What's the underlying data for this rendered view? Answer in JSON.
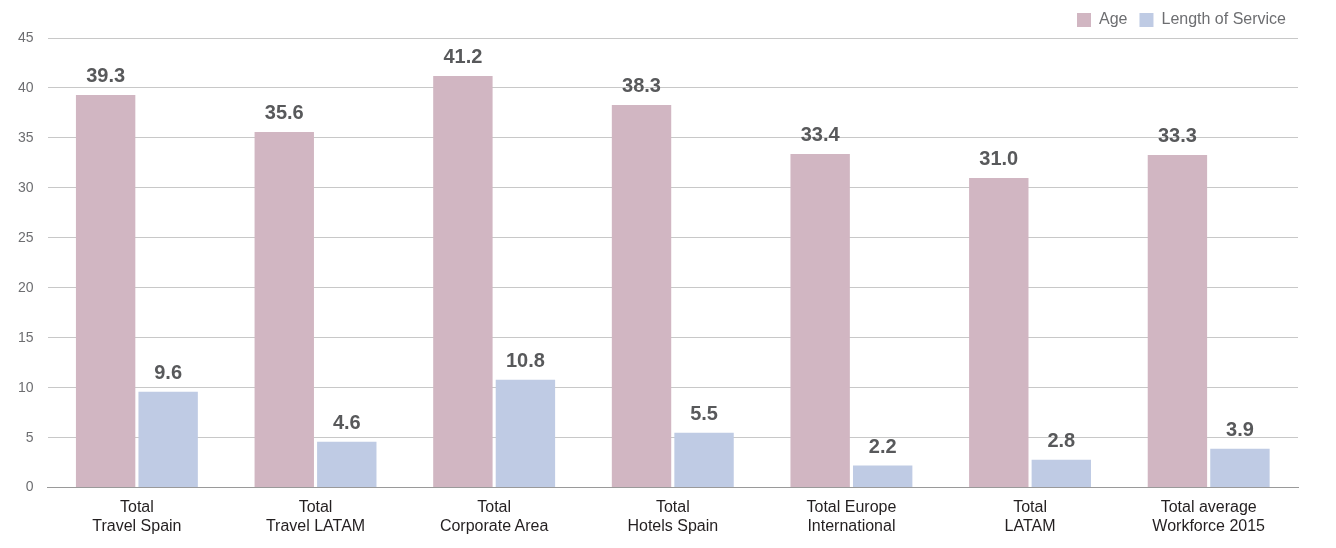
{
  "chart_data": {
    "type": "bar",
    "categories": [
      "Total Travel Spain",
      "Total Travel LATAM",
      "Total Corporate Area",
      "Total Hotels Spain",
      "Total Europe International",
      "Total LATAM",
      "Total average Workforce 2015"
    ],
    "series": [
      {
        "name": "Age",
        "color": "#d1b6c2",
        "values": [
          39.3,
          35.6,
          41.2,
          38.3,
          33.4,
          31.0,
          33.3
        ],
        "value_labels": [
          "39.3",
          "35.6",
          "41.2",
          "38.3",
          "33.4",
          "31.0",
          "33.3"
        ]
      },
      {
        "name": "Length of Service",
        "color": "#bfcbe4",
        "values": [
          9.6,
          4.6,
          10.8,
          5.5,
          2.2,
          2.8,
          3.9
        ],
        "value_labels": [
          "9.6",
          "4.6",
          "10.8",
          "5.5",
          "2.2",
          "2.8",
          "3.9"
        ]
      }
    ],
    "ylim": [
      0,
      45
    ],
    "yticks": [
      0,
      5,
      10,
      15,
      20,
      25,
      30,
      35,
      40,
      45
    ],
    "grid": "y",
    "legend": "top right"
  }
}
